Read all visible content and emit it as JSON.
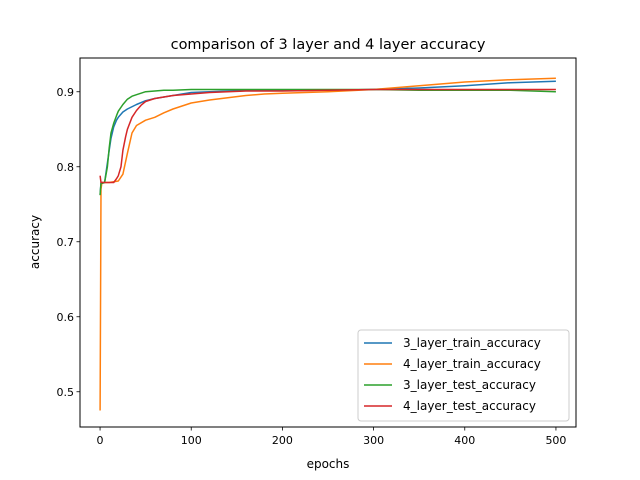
{
  "chart_data": {
    "type": "line",
    "title": "comparison of 3 layer and 4 layer accuracy",
    "xlabel": "epochs",
    "ylabel": "accuracy",
    "xlim": [
      -22,
      522
    ],
    "ylim": [
      0.453,
      0.945
    ],
    "xticks": [
      0,
      100,
      200,
      300,
      400,
      500
    ],
    "yticks": [
      0.5,
      0.6,
      0.7,
      0.8,
      0.9
    ],
    "ytick_labels": [
      "0.5",
      "0.6",
      "0.7",
      "0.8",
      "0.9"
    ],
    "grid": false,
    "legend_position": "lower right",
    "series": [
      {
        "name": "3_layer_train_accuracy",
        "color": "#1f77b4",
        "x": [
          0,
          1,
          3,
          5,
          8,
          10,
          12,
          15,
          18,
          20,
          25,
          30,
          40,
          50,
          60,
          70,
          80,
          90,
          100,
          120,
          140,
          160,
          180,
          200,
          250,
          300,
          350,
          400,
          450,
          500
        ],
        "values": [
          0.763,
          0.779,
          0.779,
          0.779,
          0.805,
          0.822,
          0.838,
          0.853,
          0.862,
          0.866,
          0.873,
          0.877,
          0.883,
          0.888,
          0.891,
          0.893,
          0.895,
          0.897,
          0.899,
          0.9,
          0.901,
          0.902,
          0.902,
          0.902,
          0.902,
          0.903,
          0.905,
          0.908,
          0.912,
          0.914
        ]
      },
      {
        "name": "4_layer_train_accuracy",
        "color": "#ff7f0e",
        "x": [
          0,
          1,
          2,
          3,
          5,
          10,
          20,
          25,
          30,
          35,
          40,
          50,
          60,
          70,
          80,
          90,
          100,
          120,
          140,
          160,
          180,
          200,
          250,
          300,
          350,
          400,
          450,
          500
        ],
        "values": [
          0.475,
          0.77,
          0.779,
          0.779,
          0.779,
          0.779,
          0.781,
          0.79,
          0.818,
          0.845,
          0.855,
          0.862,
          0.866,
          0.872,
          0.877,
          0.881,
          0.885,
          0.889,
          0.892,
          0.895,
          0.897,
          0.898,
          0.9,
          0.903,
          0.908,
          0.913,
          0.916,
          0.918
        ]
      },
      {
        "name": "3_layer_test_accuracy",
        "color": "#2ca02c",
        "x": [
          0,
          1,
          3,
          5,
          8,
          10,
          12,
          15,
          18,
          20,
          25,
          30,
          35,
          40,
          50,
          60,
          70,
          80,
          100,
          120,
          140,
          160,
          180,
          200,
          250,
          300,
          350,
          400,
          450,
          500
        ],
        "values": [
          0.762,
          0.778,
          0.778,
          0.779,
          0.8,
          0.825,
          0.845,
          0.858,
          0.868,
          0.874,
          0.883,
          0.89,
          0.894,
          0.896,
          0.9,
          0.901,
          0.902,
          0.902,
          0.903,
          0.903,
          0.903,
          0.903,
          0.903,
          0.903,
          0.903,
          0.903,
          0.902,
          0.902,
          0.902,
          0.9
        ]
      },
      {
        "name": "4_layer_test_accuracy",
        "color": "#d62728",
        "x": [
          0,
          1,
          3,
          5,
          10,
          15,
          18,
          20,
          23,
          25,
          28,
          30,
          35,
          40,
          45,
          50,
          60,
          70,
          80,
          100,
          120,
          140,
          160,
          200,
          250,
          300,
          350,
          400,
          450,
          500
        ],
        "values": [
          0.788,
          0.779,
          0.779,
          0.779,
          0.779,
          0.779,
          0.784,
          0.788,
          0.8,
          0.822,
          0.84,
          0.85,
          0.866,
          0.875,
          0.882,
          0.887,
          0.891,
          0.893,
          0.895,
          0.897,
          0.899,
          0.9,
          0.901,
          0.901,
          0.902,
          0.903,
          0.903,
          0.903,
          0.903,
          0.903
        ]
      }
    ]
  }
}
